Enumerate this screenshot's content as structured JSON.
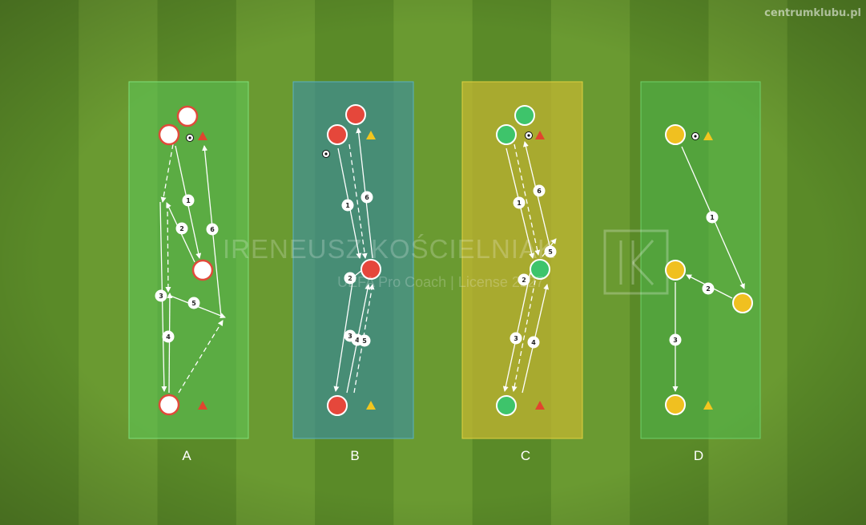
{
  "site": "centrumklubu.pl",
  "watermark": {
    "name": "IRENEUSZ KOŚCIELNIAK",
    "subtitle": "UEFA Pro Coach  |  License 2227",
    "logo": "IK"
  },
  "colors": {
    "grass_light": "#6a9a31",
    "grass_dark": "#5a8a28",
    "zone_A": "#5cc95a",
    "zone_B": "#3e8f9e",
    "zone_C": "#c9b832",
    "zone_D": "#4fb84c",
    "player_A_fill": "#ffffff",
    "player_A_ring": "#e04a3a",
    "player_B_fill": "#e5473b",
    "player_C_fill": "#3ec46b",
    "player_D_fill": "#f0c020",
    "cone_red": "#e0452f",
    "cone_yellow": "#f2c61f"
  },
  "drills": [
    {
      "label": "A",
      "icon": "zone-a"
    },
    {
      "label": "B",
      "icon": "zone-b"
    },
    {
      "label": "C",
      "icon": "zone-c"
    },
    {
      "label": "D",
      "icon": "zone-d"
    }
  ],
  "pass_numbers": {
    "A": [
      "1",
      "2",
      "3",
      "4",
      "5",
      "6"
    ],
    "B": [
      "1",
      "2",
      "3",
      "4",
      "5",
      "6"
    ],
    "C": [
      "1",
      "2",
      "3",
      "4",
      "5",
      "6"
    ],
    "D": [
      "1",
      "2",
      "3"
    ]
  }
}
